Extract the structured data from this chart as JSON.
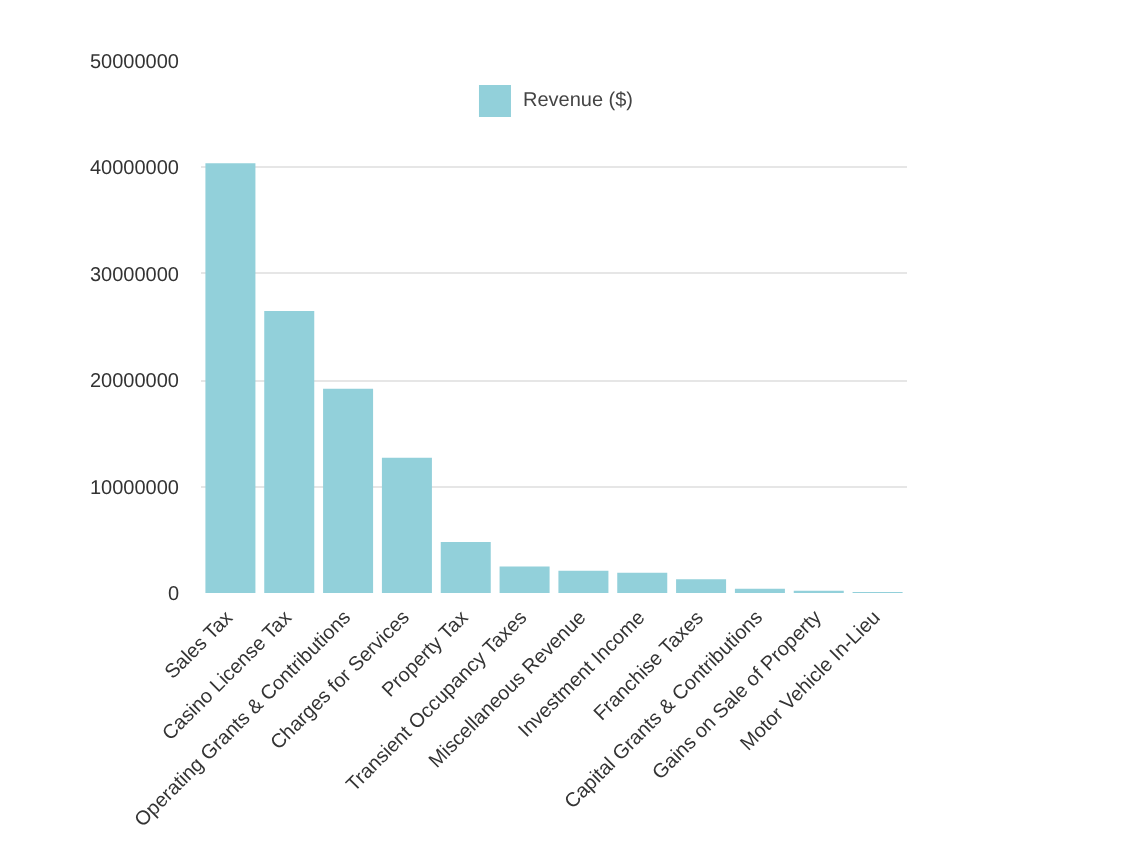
{
  "chart_data": {
    "type": "bar",
    "categories": [
      "Sales Tax",
      "Casino License Tax",
      "Operating Grants & Contributions",
      "Charges for Services",
      "Property Tax",
      "Transient Occupancy Taxes",
      "Miscellaneous Revenue",
      "Investment Income",
      "Franchise Taxes",
      "Capital Grants & Contributions",
      "Gains on Sale of Property",
      "Motor Vehicle In-Lieu"
    ],
    "series": [
      {
        "name": "Revenue ($)",
        "color": "#92d0da",
        "values": [
          40400000,
          26500000,
          19200000,
          12700000,
          4800000,
          2500000,
          2100000,
          1900000,
          1300000,
          400000,
          200000,
          100000
        ]
      }
    ],
    "ylim": [
      0,
      50000000
    ],
    "yticks": [
      0,
      10000000,
      20000000,
      30000000,
      40000000,
      50000000
    ],
    "grid": "y",
    "legend": "top"
  }
}
